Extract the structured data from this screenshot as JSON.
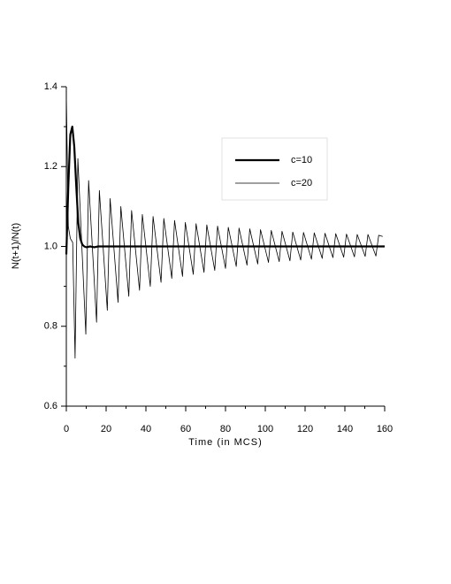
{
  "chart_data": {
    "type": "line",
    "x_label": "Time (in MCS)",
    "y_label": "N(t+1)/N(t)",
    "xlim": [
      0,
      160
    ],
    "xticks": [
      0,
      20,
      40,
      60,
      80,
      100,
      120,
      140,
      160
    ],
    "xticks_minor": [
      10,
      30,
      50,
      70,
      90,
      110,
      130,
      150
    ],
    "ylim": [
      0.6,
      1.4
    ],
    "yticks": [
      0.6,
      0.8,
      {
        "value": 1,
        "label": "1.0"
      },
      1.2,
      1.4
    ],
    "yticks_minor": [
      0.7,
      0.9,
      1.1,
      1.3
    ],
    "grid": false,
    "legend": "upper right",
    "series": [
      {
        "name": "c=10",
        "color": "#000000",
        "width": 2.2,
        "x": [
          0,
          1,
          2,
          3,
          4,
          5,
          6,
          7,
          8,
          9,
          10,
          12,
          14,
          16,
          20,
          160
        ],
        "values": [
          0.98,
          1.15,
          1.28,
          1.3,
          1.25,
          1.15,
          1.06,
          1.02,
          1.005,
          1.0,
          0.998,
          1.0,
          0.998,
          1.0,
          1.0,
          1.0
        ]
      },
      {
        "name": "c=20",
        "color": "#000000",
        "width": 0.8,
        "x": [
          0,
          1,
          2,
          3.2,
          4.4,
          5.8,
          9.8,
          11.2,
          15.2,
          16.6,
          20.6,
          22,
          26,
          27.4,
          31.4,
          32.8,
          36.8,
          38.2,
          42.2,
          43.6,
          47.6,
          49,
          53,
          54.4,
          58.4,
          59.8,
          63.8,
          65.2,
          69.2,
          70.6,
          74.6,
          76,
          80,
          81.4,
          85.4,
          86.8,
          90.8,
          92.2,
          96.2,
          97.6,
          101.6,
          103,
          107,
          108.4,
          112.4,
          113.8,
          117.8,
          119.2,
          123.2,
          124.6,
          128.6,
          130,
          134,
          135.4,
          139.4,
          140.8,
          144.8,
          146.2,
          150.2,
          151.6,
          155.6,
          157,
          159
        ],
        "values": [
          1.38,
          1.05,
          1.02,
          1.01,
          0.72,
          1.22,
          0.78,
          1.165,
          0.81,
          1.14,
          0.84,
          1.12,
          0.86,
          1.1,
          0.875,
          1.09,
          0.89,
          1.08,
          0.9,
          1.075,
          0.91,
          1.07,
          0.92,
          1.065,
          0.925,
          1.06,
          0.93,
          1.057,
          0.935,
          1.054,
          0.94,
          1.051,
          0.945,
          1.048,
          0.95,
          1.046,
          0.953,
          1.044,
          0.956,
          1.042,
          0.96,
          1.04,
          0.962,
          1.038,
          0.964,
          1.036,
          0.966,
          1.035,
          0.968,
          1.034,
          0.97,
          1.033,
          0.972,
          1.032,
          0.973,
          1.031,
          0.974,
          1.03,
          0.975,
          1.03,
          0.976,
          1.028,
          1.025
        ]
      }
    ]
  }
}
